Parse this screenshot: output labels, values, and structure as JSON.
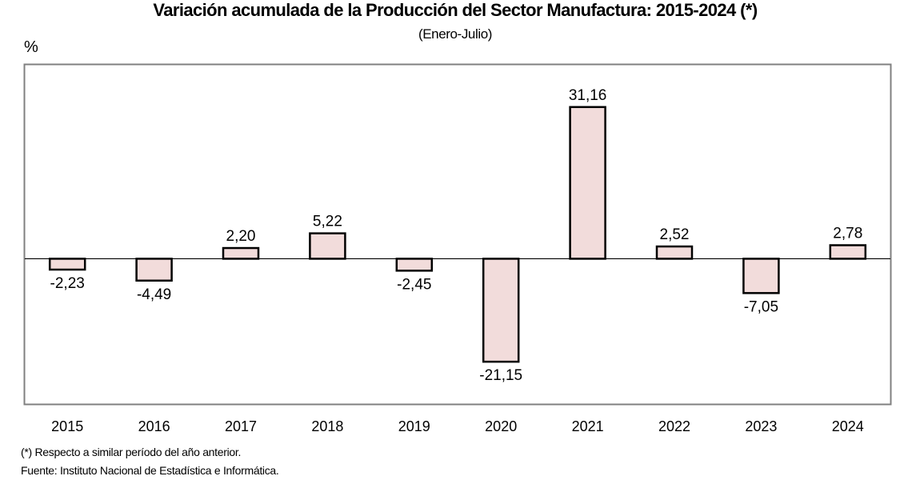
{
  "chart_data": {
    "type": "bar",
    "title": "Variación acumulada de la Producción del Sector Manufactura: 2015-2024 (*)",
    "subtitle": "(Enero-Julio)",
    "ylabel": "%",
    "xlabel": "",
    "categories": [
      "2015",
      "2016",
      "2017",
      "2018",
      "2019",
      "2020",
      "2021",
      "2022",
      "2023",
      "2024"
    ],
    "values": [
      -2.23,
      -4.49,
      2.2,
      5.22,
      -2.45,
      -21.15,
      31.16,
      2.52,
      -7.05,
      2.78
    ],
    "data_labels": [
      "-2,23",
      "-4,49",
      "2,20",
      "5,22",
      "-2,45",
      "-21,15",
      "31,16",
      "2,52",
      "-7,05",
      "2,78"
    ],
    "ylim": [
      -30,
      40
    ],
    "grid": false,
    "legend": "none",
    "bar_color": "#f2dcdb",
    "bar_edge_color": "#000000"
  },
  "footnotes": {
    "note": "(*) Respecto a similar período del año anterior.",
    "source": "Fuente: Instituto Nacional de Estadística e Informática."
  }
}
